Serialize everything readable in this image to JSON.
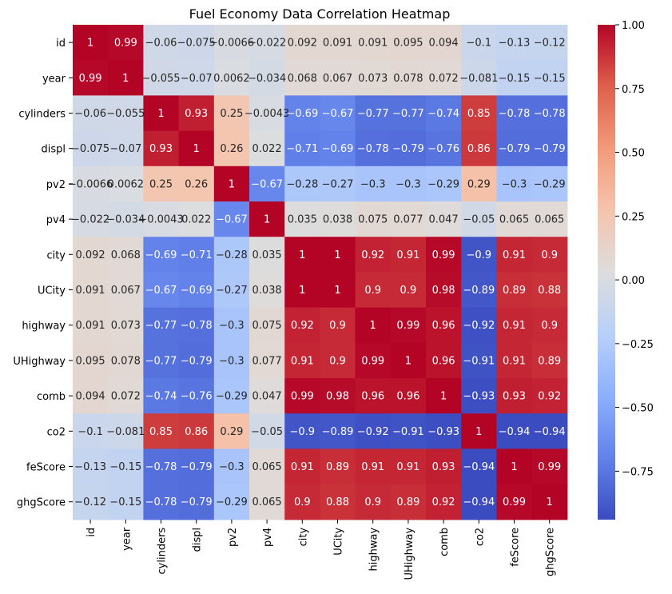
{
  "chart_data": {
    "type": "heatmap",
    "title": "Fuel Economy Data Correlation Heatmap",
    "variables": [
      "id",
      "year",
      "cylinders",
      "displ",
      "pv2",
      "pv4",
      "city",
      "UCity",
      "highway",
      "UHighway",
      "comb",
      "co2",
      "feScore",
      "ghgScore"
    ],
    "values": [
      [
        1,
        0.99,
        -0.06,
        -0.075,
        -0.0066,
        -0.022,
        0.092,
        0.091,
        0.091,
        0.095,
        0.094,
        -0.1,
        -0.13,
        -0.12
      ],
      [
        0.99,
        1,
        -0.055,
        -0.07,
        0.0062,
        -0.034,
        0.068,
        0.067,
        0.073,
        0.078,
        0.072,
        -0.081,
        -0.15,
        -0.15
      ],
      [
        -0.06,
        -0.055,
        1,
        0.93,
        0.25,
        -0.0043,
        -0.69,
        -0.67,
        -0.77,
        -0.77,
        -0.74,
        0.85,
        -0.78,
        -0.78
      ],
      [
        -0.075,
        -0.07,
        0.93,
        1,
        0.26,
        0.022,
        -0.71,
        -0.69,
        -0.78,
        -0.79,
        -0.76,
        0.86,
        -0.79,
        -0.79
      ],
      [
        -0.0066,
        0.0062,
        0.25,
        0.26,
        1,
        -0.67,
        -0.28,
        -0.27,
        -0.3,
        -0.3,
        -0.29,
        0.29,
        -0.3,
        -0.29
      ],
      [
        -0.022,
        -0.034,
        -0.0043,
        0.022,
        -0.67,
        1,
        0.035,
        0.038,
        0.075,
        0.077,
        0.047,
        -0.05,
        0.065,
        0.065
      ],
      [
        0.092,
        0.068,
        -0.69,
        -0.71,
        -0.28,
        0.035,
        1,
        1,
        0.92,
        0.91,
        0.99,
        -0.9,
        0.91,
        0.9
      ],
      [
        0.091,
        0.067,
        -0.67,
        -0.69,
        -0.27,
        0.038,
        1,
        1,
        0.9,
        0.9,
        0.98,
        -0.89,
        0.89,
        0.88
      ],
      [
        0.091,
        0.073,
        -0.77,
        -0.78,
        -0.3,
        0.075,
        0.92,
        0.9,
        1,
        0.99,
        0.96,
        -0.92,
        0.91,
        0.9
      ],
      [
        0.095,
        0.078,
        -0.77,
        -0.79,
        -0.3,
        0.077,
        0.91,
        0.9,
        0.99,
        1,
        0.96,
        -0.91,
        0.91,
        0.89
      ],
      [
        0.094,
        0.072,
        -0.74,
        -0.76,
        -0.29,
        0.047,
        0.99,
        0.98,
        0.96,
        0.96,
        1,
        -0.93,
        0.93,
        0.92
      ],
      [
        -0.1,
        -0.081,
        0.85,
        0.86,
        0.29,
        -0.05,
        -0.9,
        -0.89,
        -0.92,
        -0.91,
        -0.93,
        1,
        -0.94,
        -0.94
      ],
      [
        -0.13,
        -0.15,
        -0.78,
        -0.79,
        -0.3,
        0.065,
        0.91,
        0.89,
        0.91,
        0.91,
        0.93,
        -0.94,
        1,
        0.99
      ],
      [
        -0.12,
        -0.15,
        -0.78,
        -0.79,
        -0.29,
        0.065,
        0.9,
        0.88,
        0.9,
        0.89,
        0.92,
        -0.94,
        0.99,
        1
      ]
    ],
    "colormap": "coolwarm",
    "vmin": -0.94,
    "vmax": 1.0,
    "colorbar_ticks": [
      1.0,
      0.75,
      0.5,
      0.25,
      0.0,
      -0.25,
      -0.5,
      -0.75
    ],
    "colorbar_tick_labels": [
      "1.00",
      "0.75",
      "0.50",
      "0.25",
      "0.00",
      "−0.25",
      "−0.50",
      "−0.75"
    ],
    "annotated": true,
    "x_tick_rotation": "vertical"
  }
}
